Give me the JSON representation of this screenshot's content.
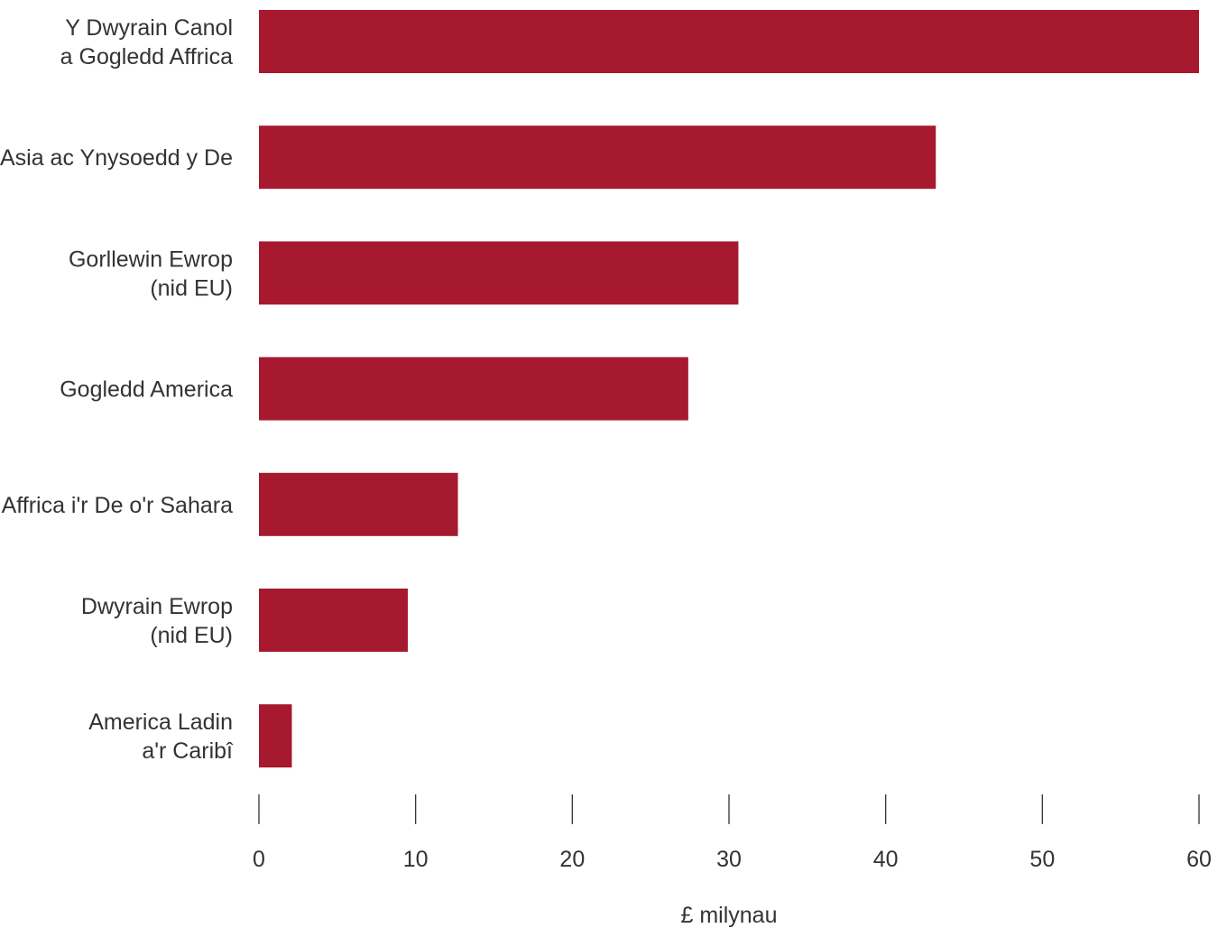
{
  "chart_data": {
    "type": "bar",
    "orientation": "horizontal",
    "categories": [
      [
        "Y Dwyrain Canol",
        "a Gogledd Affrica"
      ],
      [
        "Asia ac Ynysoedd y De"
      ],
      [
        "Gorllewin Ewrop",
        "(nid EU)"
      ],
      [
        "Gogledd America"
      ],
      [
        "Affrica i'r De o'r Sahara"
      ],
      [
        "Dwyrain Ewrop",
        "(nid EU)"
      ],
      [
        "America Ladin",
        "a'r Caribî"
      ]
    ],
    "values": [
      60,
      43.2,
      30.6,
      27.4,
      12.7,
      9.5,
      2.1
    ],
    "xlabel": "£ milynau",
    "ylabel": "",
    "xlim": [
      0,
      60
    ],
    "xticks": [
      0,
      10,
      20,
      30,
      40,
      50,
      60
    ],
    "grid": false,
    "legend": "none",
    "bar_color": "#a6192e"
  }
}
